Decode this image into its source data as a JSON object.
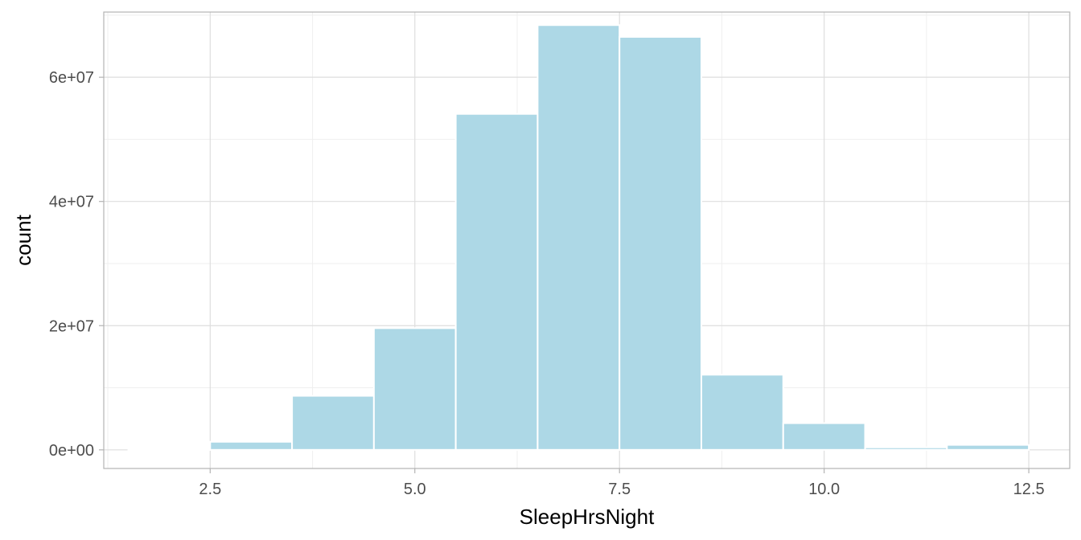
{
  "chart_data": {
    "type": "bar",
    "subtype": "histogram",
    "xlabel": "SleepHrsNight",
    "ylabel": "count",
    "title": "",
    "xlim": [
      1.2,
      13.0
    ],
    "ylim": [
      -3000000,
      70500000
    ],
    "bin_width": 1,
    "bins": [
      {
        "x": 2,
        "value": 0
      },
      {
        "x": 3,
        "value": 1300000
      },
      {
        "x": 4,
        "value": 8700000
      },
      {
        "x": 5,
        "value": 19600000
      },
      {
        "x": 6,
        "value": 54100000
      },
      {
        "x": 7,
        "value": 68400000
      },
      {
        "x": 8,
        "value": 66500000
      },
      {
        "x": 9,
        "value": 12100000
      },
      {
        "x": 10,
        "value": 4300000
      },
      {
        "x": 11,
        "value": 400000
      },
      {
        "x": 12,
        "value": 800000
      }
    ],
    "x_ticks": [
      {
        "value": 2.5,
        "label": "2.5"
      },
      {
        "value": 5.0,
        "label": "5.0"
      },
      {
        "value": 7.5,
        "label": "7.5"
      },
      {
        "value": 10.0,
        "label": "10.0"
      },
      {
        "value": 12.5,
        "label": "12.5"
      }
    ],
    "y_ticks": [
      {
        "value": 0,
        "label": "0e+00"
      },
      {
        "value": 20000000,
        "label": "2e+07"
      },
      {
        "value": 40000000,
        "label": "4e+07"
      },
      {
        "value": 60000000,
        "label": "6e+07"
      }
    ],
    "grid": true,
    "colors": {
      "fill": "#add8e6",
      "outline": "#ffffff",
      "grid_major": "#dedede",
      "grid_minor": "#efefef",
      "panel_border": "#b3b3b3",
      "tick_text": "#4d4d4d",
      "axis_title": "#000000"
    }
  }
}
